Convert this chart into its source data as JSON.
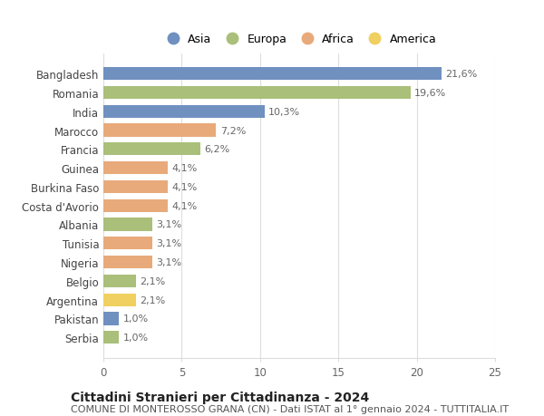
{
  "categories": [
    "Bangladesh",
    "Romania",
    "India",
    "Marocco",
    "Francia",
    "Guinea",
    "Burkina Faso",
    "Costa d'Avorio",
    "Albania",
    "Tunisia",
    "Nigeria",
    "Belgio",
    "Argentina",
    "Pakistan",
    "Serbia"
  ],
  "values": [
    21.6,
    19.6,
    10.3,
    7.2,
    6.2,
    4.1,
    4.1,
    4.1,
    3.1,
    3.1,
    3.1,
    2.1,
    2.1,
    1.0,
    1.0
  ],
  "labels": [
    "21,6%",
    "19,6%",
    "10,3%",
    "7,2%",
    "6,2%",
    "4,1%",
    "4,1%",
    "4,1%",
    "3,1%",
    "3,1%",
    "3,1%",
    "2,1%",
    "2,1%",
    "1,0%",
    "1,0%"
  ],
  "continents": [
    "Asia",
    "Europa",
    "Asia",
    "Africa",
    "Europa",
    "Africa",
    "Africa",
    "Africa",
    "Europa",
    "Africa",
    "Africa",
    "Europa",
    "America",
    "Asia",
    "Europa"
  ],
  "continent_colors": {
    "Asia": "#7090c0",
    "Europa": "#aabf7a",
    "Africa": "#e8aa7a",
    "America": "#f0d060"
  },
  "legend_order": [
    "Asia",
    "Europa",
    "Africa",
    "America"
  ],
  "title": "Cittadini Stranieri per Cittadinanza - 2024",
  "subtitle": "COMUNE DI MONTEROSSO GRANA (CN) - Dati ISTAT al 1° gennaio 2024 - TUTTITALIA.IT",
  "xlim": [
    0,
    25
  ],
  "xticks": [
    0,
    5,
    10,
    15,
    20,
    25
  ],
  "background_color": "#ffffff",
  "grid_color": "#dddddd",
  "bar_height": 0.68,
  "title_fontsize": 10,
  "subtitle_fontsize": 8,
  "tick_fontsize": 8.5,
  "label_fontsize": 8,
  "legend_fontsize": 9
}
